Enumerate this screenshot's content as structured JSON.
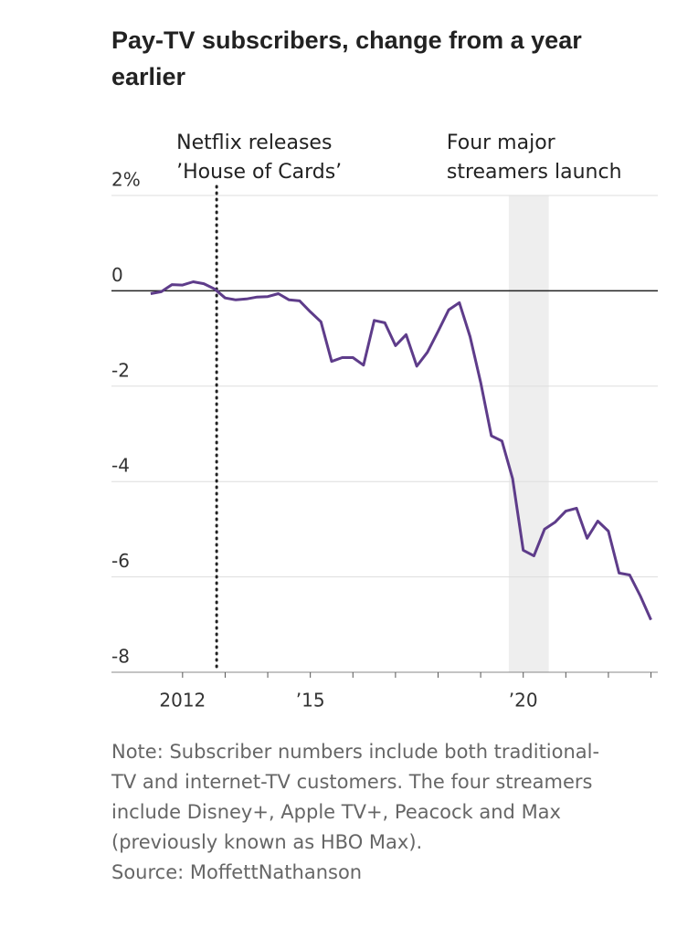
{
  "chart_data": {
    "type": "line",
    "title": [
      "Pay-TV subscribers, change from a year",
      "earlier"
    ],
    "x": [
      2011.25,
      2011.5,
      2011.75,
      2012,
      2012.25,
      2012.5,
      2012.75,
      2013,
      2013.25,
      2013.5,
      2013.75,
      2014,
      2014.25,
      2014.5,
      2014.75,
      2015,
      2015.25,
      2015.5,
      2015.75,
      2016,
      2016.25,
      2016.5,
      2016.75,
      2017,
      2017.25,
      2017.5,
      2017.75,
      2018,
      2018.25,
      2018.5,
      2018.75,
      2019,
      2019.25,
      2019.5,
      2019.75,
      2020,
      2020.25,
      2020.5,
      2020.75,
      2021,
      2021.25,
      2021.5,
      2021.75,
      2022,
      2022.25,
      2022.5,
      2022.75,
      2023
    ],
    "series": [
      {
        "color": "#5e3c8a",
        "values": [
          -0.06,
          -0.02,
          0.13,
          0.12,
          0.19,
          0.15,
          0.04,
          -0.15,
          -0.19,
          -0.17,
          -0.13,
          -0.12,
          -0.06,
          -0.19,
          -0.21,
          -0.44,
          -0.65,
          -1.48,
          -1.4,
          -1.4,
          -1.56,
          -0.62,
          -0.67,
          -1.15,
          -0.92,
          -1.58,
          -1.29,
          -0.85,
          -0.4,
          -0.25,
          -0.96,
          -1.92,
          -3.04,
          -3.15,
          -3.94,
          -5.44,
          -5.56,
          -5.0,
          -4.85,
          -4.62,
          -4.56,
          -5.19,
          -4.83,
          -5.04,
          -5.92,
          -5.96,
          -6.4,
          -6.9
        ]
      }
    ],
    "xlim": [
      2010.33,
      2023.16
    ],
    "xticks": [
      2012,
      {
        "value": 2015,
        "label": "’15"
      },
      {
        "value": 2020,
        "label": "’20"
      }
    ],
    "xminor_ticks": [
      2013,
      2014,
      2016,
      2017,
      2018,
      2019,
      2021,
      2022,
      2023
    ],
    "ylim": [
      -8,
      2
    ],
    "yticks": [
      {
        "value": 2,
        "label": "2%"
      },
      0,
      -2,
      -4,
      -6,
      -8
    ],
    "grid": true,
    "annotations": [
      {
        "label": [
          "Netflix releases",
          "’House of Cards’"
        ],
        "x": 2012.8
      },
      {
        "label": [
          "Four major",
          "streamers launch"
        ],
        "x_range": [
          2019.66,
          2020.6
        ]
      }
    ],
    "note": [
      "Note: Subscriber numbers include both traditional-",
      "TV and internet-TV customers. The four streamers",
      "include Disney+, Apple TV+, Peacock and Max",
      "(previously known as HBO Max)."
    ],
    "source": "Source: MoffettNathanson"
  }
}
